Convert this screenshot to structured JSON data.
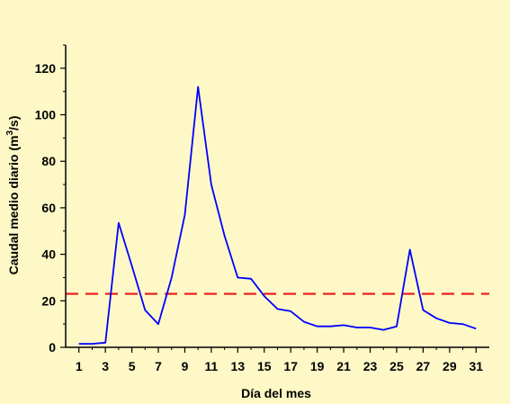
{
  "colors": {
    "background": "#FDF8C6",
    "axis": "#000000",
    "series_line": "#0000FF",
    "reference_line": "#E81818"
  },
  "chart_data": {
    "type": "line",
    "title": "",
    "xlabel": "Día del mes",
    "ylabel_main": "Caudal medio diario (m",
    "ylabel_sup": "3",
    "ylabel_tail": "/s)",
    "xlim": [
      0,
      32
    ],
    "ylim": [
      0,
      130
    ],
    "x_ticks_major": [
      1,
      3,
      5,
      7,
      9,
      11,
      13,
      15,
      17,
      19,
      21,
      23,
      25,
      27,
      29,
      31
    ],
    "x_tick_labels": [
      "1",
      "3",
      "5",
      "7",
      "9",
      "11",
      "13",
      "15",
      "17",
      "19",
      "21",
      "23",
      "25",
      "27",
      "29",
      "31"
    ],
    "x_ticks_minor": [
      2,
      4,
      6,
      8,
      10,
      12,
      14,
      16,
      18,
      20,
      22,
      24,
      26,
      28,
      30
    ],
    "y_ticks_major": [
      0,
      20,
      40,
      60,
      80,
      100,
      120
    ],
    "y_tick_labels": [
      "0",
      "20",
      "40",
      "60",
      "80",
      "100",
      "120"
    ],
    "y_ticks_minor": [
      10,
      30,
      50,
      70,
      90,
      110,
      130
    ],
    "x": [
      1,
      2,
      3,
      4,
      5,
      6,
      7,
      8,
      9,
      10,
      11,
      12,
      13,
      14,
      15,
      16,
      17,
      18,
      19,
      20,
      21,
      22,
      23,
      24,
      25,
      26,
      27,
      28,
      29,
      30,
      31
    ],
    "values": [
      1.5,
      1.5,
      2,
      53.5,
      35,
      16,
      10,
      30,
      57,
      112,
      70,
      48,
      30,
      29.5,
      22,
      16.5,
      15.5,
      11,
      9,
      9,
      9.5,
      8.5,
      8.5,
      7.5,
      9,
      42,
      16,
      12.5,
      10.5,
      10,
      8
    ],
    "reference_value": 23,
    "grid": false,
    "legend": "none"
  }
}
